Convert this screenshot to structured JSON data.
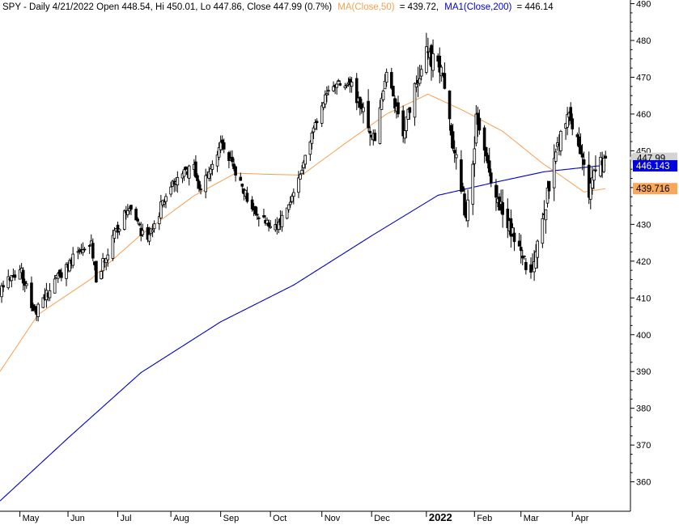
{
  "header": {
    "prefix": "SPY - Daily 4/21/2022 Open 448.54, Hi 450.01, Lo 447.86, Close 447.99 (0.7%)",
    "ma50_label": "MA(Close,50)",
    "ma50_value": "= 439.72,",
    "ma200_label": "MA1(Close,200)",
    "ma200_value": "= 446.14"
  },
  "last_price_tags": {
    "close": "447.99",
    "ma200": "446.143",
    "ma50": "439.716"
  },
  "colors": {
    "candles": "#000000",
    "ma50": "#f5a04f",
    "ma200": "#0000cc",
    "close_tag": "#d4d4d4",
    "ma200_tag": "#0000e0",
    "ma50_tag": "#f7a85a",
    "axis": "#000000"
  },
  "chart_data": {
    "type": "candlestick",
    "ticker": "SPY",
    "interval": "Daily",
    "y_axis": {
      "side": "right",
      "range": [
        352,
        491
      ],
      "ticks": [
        360,
        370,
        380,
        390,
        400,
        410,
        420,
        430,
        440,
        450,
        460,
        470,
        480,
        490
      ]
    },
    "x_axis": {
      "range": [
        "2021-04-21",
        "2022-05-06"
      ],
      "month_labels": [
        {
          "label": "May",
          "date": "2021-05-03"
        },
        {
          "label": "Jun",
          "date": "2021-06-01"
        },
        {
          "label": "Jul",
          "date": "2021-07-01"
        },
        {
          "label": "Aug",
          "date": "2021-08-02"
        },
        {
          "label": "Sep",
          "date": "2021-09-01"
        },
        {
          "label": "Oct",
          "date": "2021-10-01"
        },
        {
          "label": "Nov",
          "date": "2021-11-01"
        },
        {
          "label": "Dec",
          "date": "2021-12-01"
        },
        {
          "label": "2022",
          "date": "2022-01-03",
          "bold": true
        },
        {
          "label": "Feb",
          "date": "2022-02-01"
        },
        {
          "label": "Mar",
          "date": "2022-03-01"
        },
        {
          "label": "Apr",
          "date": "2022-04-01"
        }
      ]
    },
    "close_anchors": [
      [
        "2021-04-21",
        412.2
      ],
      [
        "2021-05-03",
        418.2
      ],
      [
        "2021-05-12",
        405.4
      ],
      [
        "2021-05-19",
        410.9
      ],
      [
        "2021-06-01",
        419.7
      ],
      [
        "2021-06-15",
        424.5
      ],
      [
        "2021-06-18",
        414.9
      ],
      [
        "2021-06-30",
        428.1
      ],
      [
        "2021-07-07",
        434.4
      ],
      [
        "2021-07-19",
        424.9
      ],
      [
        "2021-07-30",
        438.5
      ],
      [
        "2021-08-16",
        446.3
      ],
      [
        "2021-08-19",
        439.2
      ],
      [
        "2021-09-02",
        453.0
      ],
      [
        "2021-09-20",
        434.1
      ],
      [
        "2021-10-04",
        428.6
      ],
      [
        "2021-10-13",
        435.0
      ],
      [
        "2021-11-04",
        466.9
      ],
      [
        "2021-11-18",
        468.7
      ],
      [
        "2021-11-30",
        455.6
      ],
      [
        "2021-12-03",
        453.4
      ],
      [
        "2021-12-10",
        470.7
      ],
      [
        "2021-12-20",
        454.9
      ],
      [
        "2022-01-03",
        477.7
      ],
      [
        "2022-01-12",
        471.0
      ],
      [
        "2022-01-24",
        439.8
      ],
      [
        "2022-01-27",
        431.2
      ],
      [
        "2022-02-02",
        457.3
      ],
      [
        "2022-02-11",
        440.5
      ],
      [
        "2022-02-24",
        428.3
      ],
      [
        "2022-03-08",
        416.3
      ],
      [
        "2022-03-16",
        435.6
      ],
      [
        "2022-03-29",
        461.5
      ],
      [
        "2022-04-11",
        439.9
      ],
      [
        "2022-04-21",
        448.0
      ]
    ],
    "ma50_anchors": [
      [
        "2021-04-21",
        390.0
      ],
      [
        "2021-05-14",
        405.5
      ],
      [
        "2021-06-15",
        415.2
      ],
      [
        "2021-07-15",
        427.2
      ],
      [
        "2021-08-16",
        437.8
      ],
      [
        "2021-09-10",
        443.9
      ],
      [
        "2021-10-01",
        443.6
      ],
      [
        "2021-10-20",
        443.4
      ],
      [
        "2021-11-15",
        452.0
      ],
      [
        "2021-12-10",
        460.0
      ],
      [
        "2022-01-04",
        465.4
      ],
      [
        "2022-01-25",
        461.0
      ],
      [
        "2022-02-18",
        455.3
      ],
      [
        "2022-03-14",
        446.6
      ],
      [
        "2022-03-29",
        442.0
      ],
      [
        "2022-04-08",
        438.8
      ],
      [
        "2022-04-21",
        439.7
      ]
    ],
    "ma200_anchors": [
      [
        "2021-04-21",
        354.8
      ],
      [
        "2021-06-01",
        371.9
      ],
      [
        "2021-07-15",
        389.7
      ],
      [
        "2021-09-01",
        403.5
      ],
      [
        "2021-10-15",
        413.5
      ],
      [
        "2021-12-01",
        426.9
      ],
      [
        "2022-01-10",
        437.9
      ],
      [
        "2022-02-15",
        441.6
      ],
      [
        "2022-03-15",
        444.3
      ],
      [
        "2022-04-21",
        446.1
      ]
    ],
    "series": [
      {
        "name": "MA(Close,50)",
        "last": 439.72
      },
      {
        "name": "MA1(Close,200)",
        "last": 446.14
      }
    ],
    "last_bar": {
      "date": "2022-04-21",
      "open": 448.54,
      "high": 450.01,
      "low": 447.86,
      "close": 447.99,
      "change_pct": 0.7
    }
  }
}
